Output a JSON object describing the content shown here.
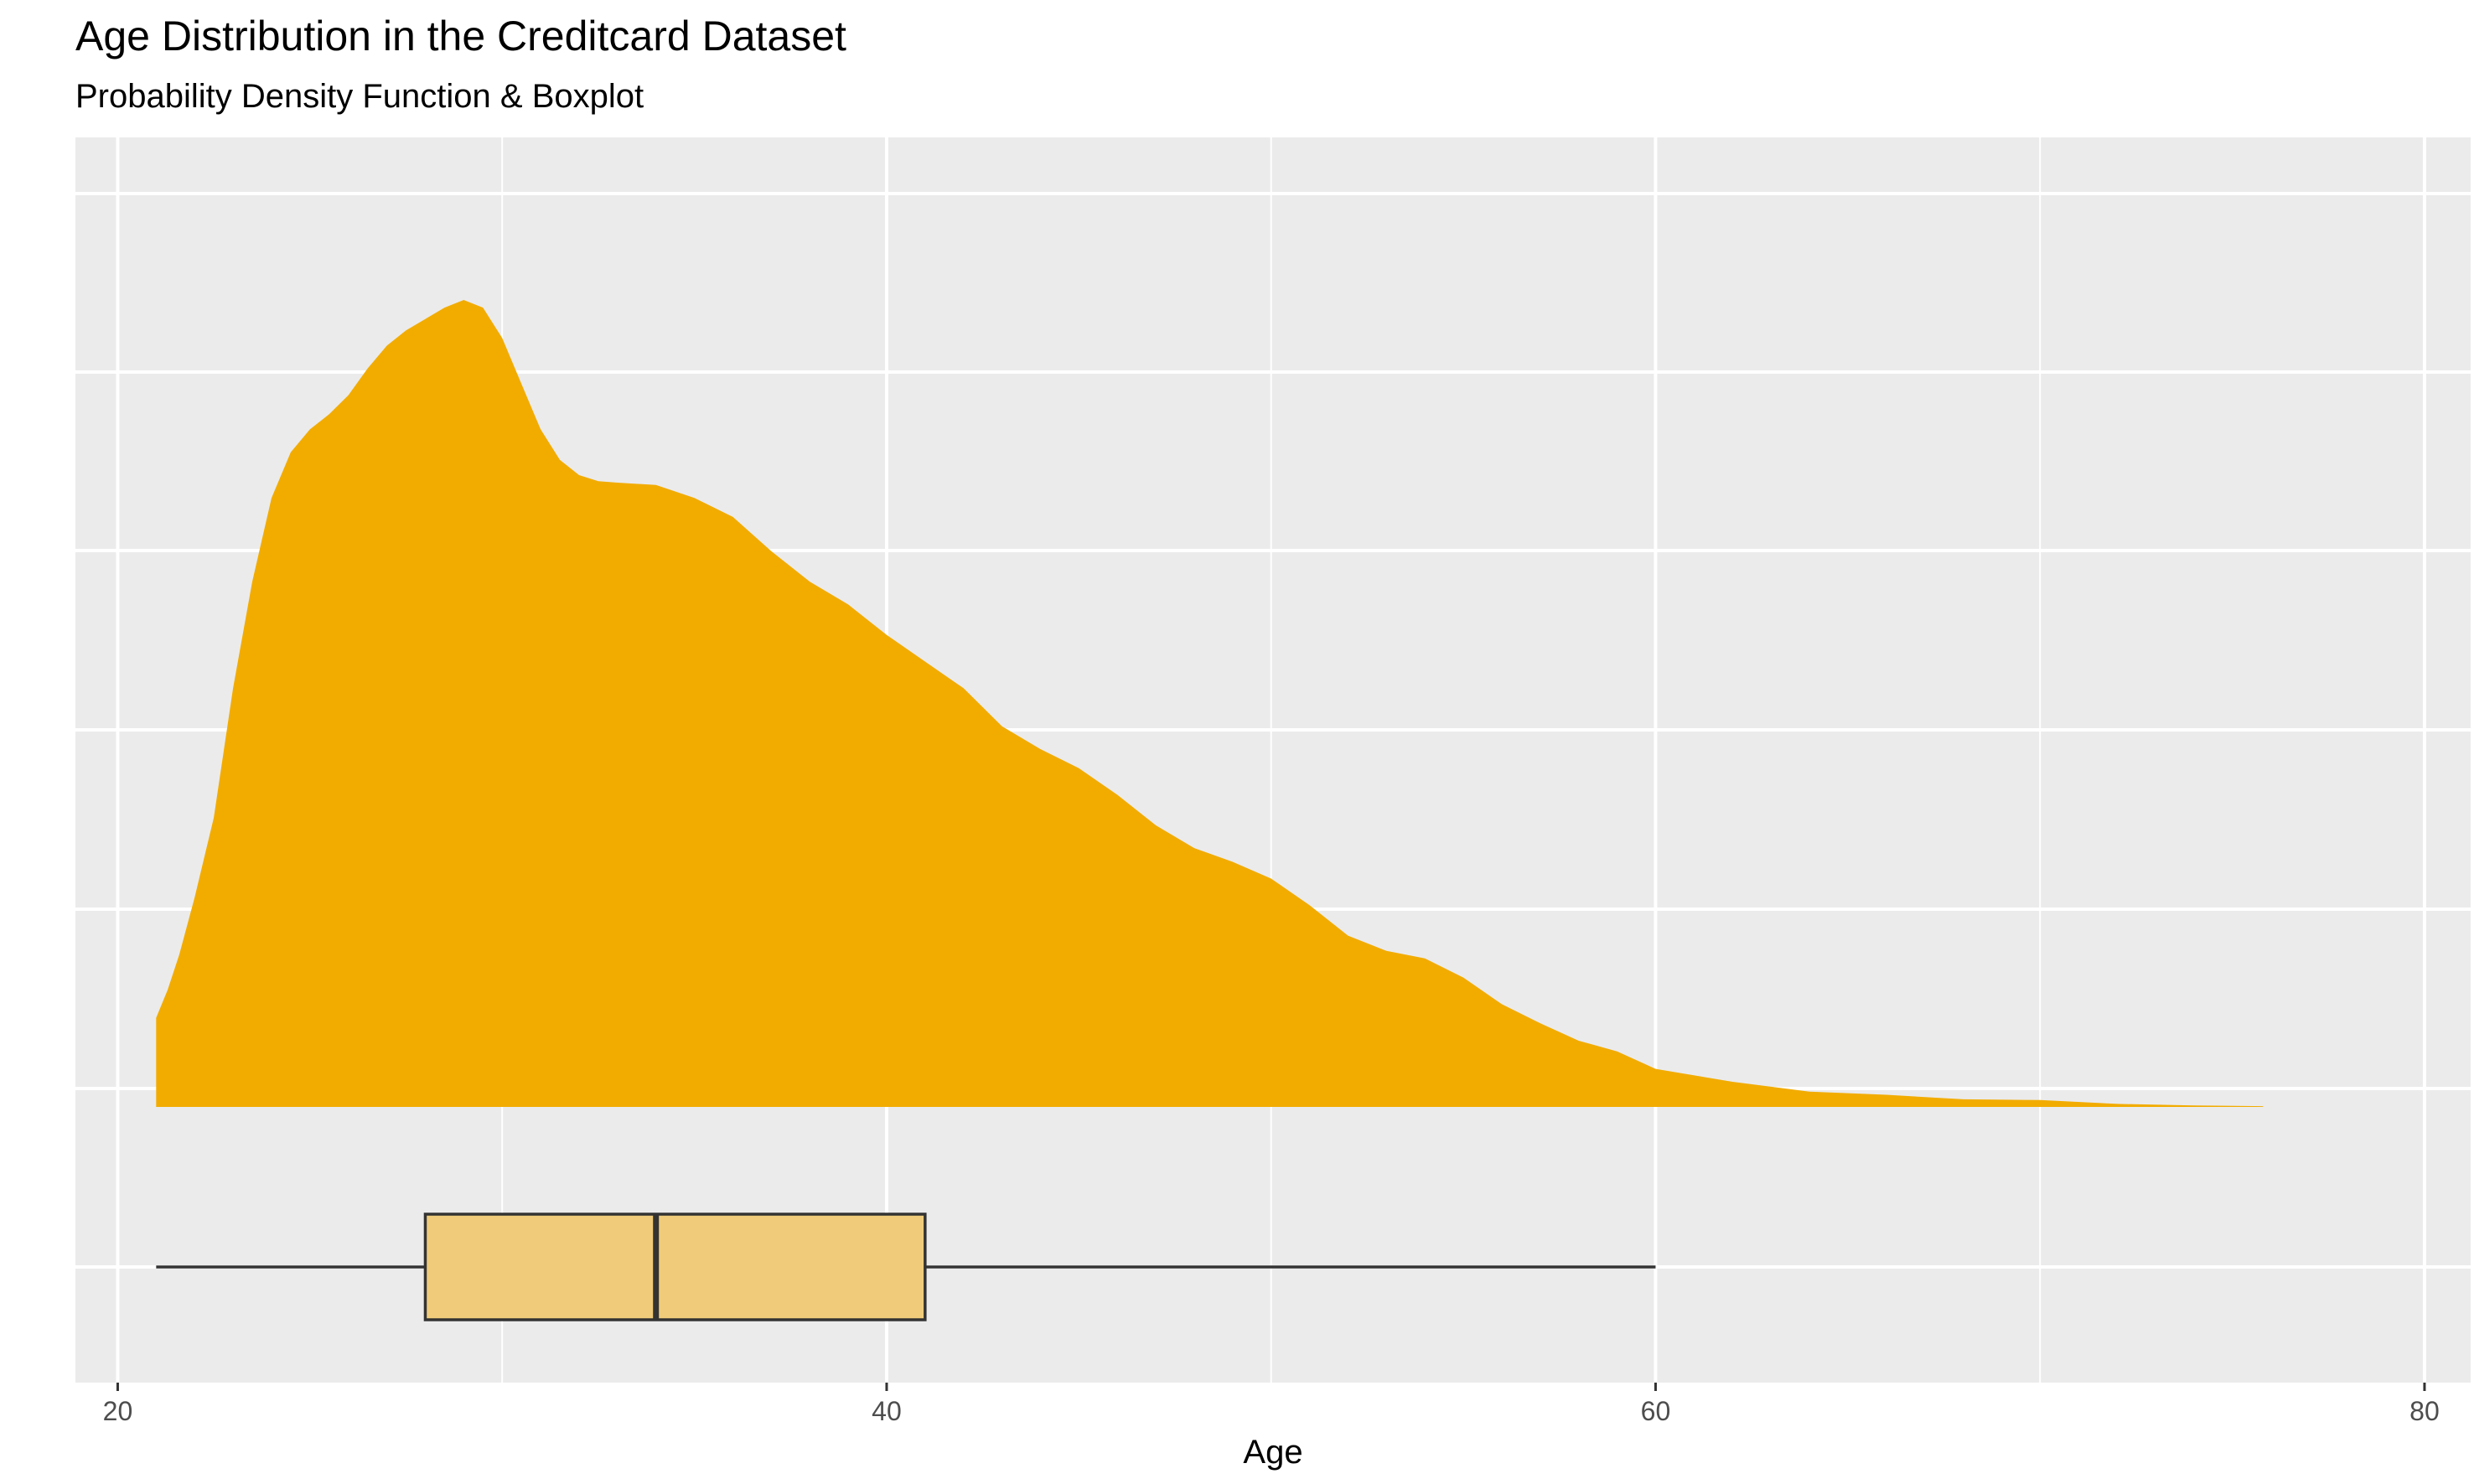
{
  "chart_data": {
    "type": "area",
    "title": "Age Distribution in the Creditcard Dataset",
    "subtitle": "Probability Density Function & Boxplot",
    "xlabel": "Age",
    "ylabel": "",
    "xlim": [
      18.9,
      81.2
    ],
    "xticks": [
      20,
      40,
      60,
      80
    ],
    "grid": true,
    "colors": {
      "panel": "#ebebeb",
      "grid": "#ffffff",
      "density_fill": "#f2ac00",
      "box_fill": "#f0cc7a",
      "box_line": "#333333",
      "tick_label": "#4d4d4d"
    },
    "density": {
      "x": [
        21,
        21.3,
        21.6,
        22,
        22.5,
        23,
        23.5,
        24,
        24.5,
        25,
        25.5,
        26,
        26.5,
        27,
        27.5,
        28,
        28.5,
        29,
        29.5,
        30,
        30.5,
        31,
        31.5,
        32,
        32.5,
        33,
        34,
        35,
        36,
        37,
        38,
        39,
        40,
        41,
        42,
        43,
        44,
        45,
        46,
        47,
        48,
        49,
        50,
        51,
        52,
        53,
        54,
        55,
        56,
        57,
        58,
        59,
        60,
        62,
        64,
        66,
        68,
        70,
        72,
        74,
        75.8
      ],
      "y": [
        0.117,
        0.154,
        0.2,
        0.275,
        0.38,
        0.55,
        0.69,
        0.8,
        0.86,
        0.89,
        0.91,
        0.935,
        0.97,
        1.0,
        1.02,
        1.035,
        1.05,
        1.06,
        1.05,
        1.01,
        0.95,
        0.89,
        0.85,
        0.83,
        0.822,
        0.82,
        0.817,
        0.8,
        0.775,
        0.73,
        0.69,
        0.66,
        0.62,
        0.585,
        0.55,
        0.5,
        0.47,
        0.445,
        0.41,
        0.37,
        0.34,
        0.322,
        0.3,
        0.265,
        0.225,
        0.205,
        0.195,
        0.17,
        0.135,
        0.11,
        0.087,
        0.073,
        0.05,
        0.033,
        0.02,
        0.016,
        0.01,
        0.009,
        0.004,
        0.002,
        0.001
      ]
    },
    "boxplot": {
      "whisker_low": 21,
      "q1": 28,
      "median": 34,
      "q3": 41,
      "whisker_high": 60
    }
  }
}
